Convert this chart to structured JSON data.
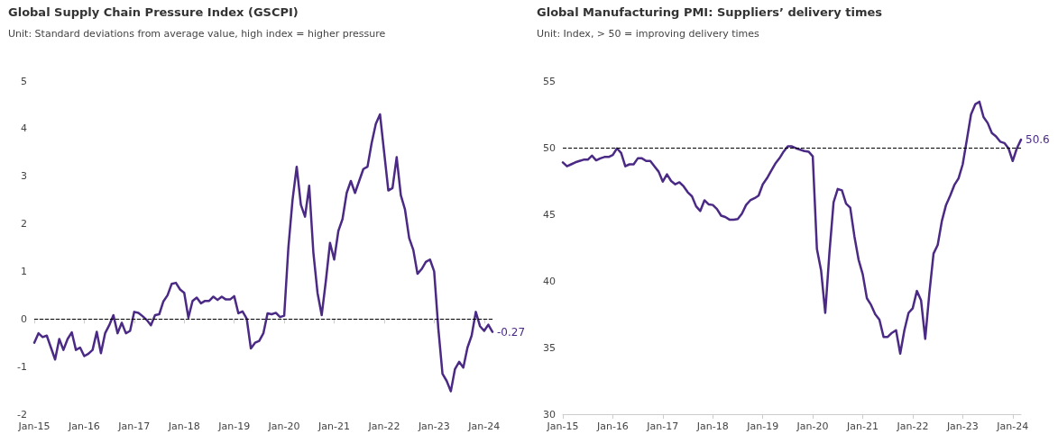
{
  "chart_data": [
    {
      "type": "line",
      "title": "Global Supply Chain Pressure Index (GSCPI)",
      "subtitle": "Unit: Standard deviations from average value, high index = higher pressure",
      "categories": [
        "Jan-15",
        null,
        null,
        null,
        null,
        null,
        null,
        null,
        null,
        null,
        null,
        null,
        "Jan-16",
        null,
        null,
        null,
        null,
        null,
        null,
        null,
        null,
        null,
        null,
        null,
        "Jan-17",
        null,
        null,
        null,
        null,
        null,
        null,
        null,
        null,
        null,
        null,
        null,
        "Jan-18",
        null,
        null,
        null,
        null,
        null,
        null,
        null,
        null,
        null,
        null,
        null,
        "Jan-19",
        null,
        null,
        null,
        null,
        null,
        null,
        null,
        null,
        null,
        null,
        null,
        "Jan-20",
        null,
        null,
        null,
        null,
        null,
        null,
        null,
        null,
        null,
        null,
        null,
        "Jan-21",
        null,
        null,
        null,
        null,
        null,
        null,
        null,
        null,
        null,
        null,
        null,
        "Jan-22",
        null,
        null,
        null,
        null,
        null,
        null,
        null,
        null,
        null,
        null,
        null,
        "Jan-23",
        null,
        null,
        null,
        null,
        null,
        null,
        null,
        null,
        null,
        null,
        null,
        "Jan-24",
        null,
        null
      ],
      "series": [
        {
          "color": "#4b2a85",
          "values": [
            -0.5,
            -0.3,
            -0.38,
            -0.35,
            -0.6,
            -0.85,
            -0.42,
            -0.65,
            -0.42,
            -0.28,
            -0.65,
            -0.6,
            -0.78,
            -0.73,
            -0.65,
            -0.27,
            -0.72,
            -0.3,
            -0.13,
            0.08,
            -0.3,
            -0.08,
            -0.3,
            -0.25,
            0.15,
            0.13,
            0.06,
            -0.02,
            -0.13,
            0.08,
            0.1,
            0.37,
            0.5,
            0.74,
            0.76,
            0.62,
            0.55,
            0.03,
            0.38,
            0.45,
            0.33,
            0.38,
            0.38,
            0.47,
            0.4,
            0.47,
            0.41,
            0.41,
            0.48,
            0.12,
            0.16,
            0.01,
            -0.62,
            -0.5,
            -0.46,
            -0.3,
            0.12,
            0.1,
            0.13,
            0.04,
            0.07,
            1.5,
            2.5,
            3.2,
            2.4,
            2.15,
            2.8,
            1.4,
            0.55,
            0.08,
            0.8,
            1.6,
            1.25,
            1.85,
            2.1,
            2.65,
            2.9,
            2.65,
            2.9,
            3.15,
            3.2,
            3.7,
            4.1,
            4.3,
            3.5,
            2.7,
            2.75,
            3.4,
            2.6,
            2.3,
            1.7,
            1.45,
            0.95,
            1.05,
            1.2,
            1.25,
            1.0,
            -0.2,
            -1.15,
            -1.3,
            -1.52,
            -1.05,
            -0.9,
            -1.02,
            -0.6,
            -0.35,
            0.15,
            -0.15,
            -0.25,
            -0.12,
            -0.27
          ],
          "value_labels": [
            null,
            null,
            null,
            null,
            null,
            null,
            null,
            null,
            null,
            null,
            null,
            null,
            null,
            null,
            null,
            null,
            null,
            null,
            null,
            null,
            null,
            null,
            null,
            null,
            null,
            null,
            null,
            null,
            null,
            null,
            null,
            null,
            null,
            null,
            null,
            null,
            null,
            null,
            null,
            null,
            null,
            null,
            null,
            null,
            null,
            null,
            null,
            null,
            null,
            null,
            null,
            null,
            null,
            null,
            null,
            null,
            null,
            null,
            null,
            null,
            null,
            null,
            null,
            null,
            null,
            null,
            null,
            null,
            null,
            null,
            null,
            null,
            null,
            null,
            null,
            null,
            null,
            null,
            null,
            null,
            null,
            null,
            null,
            null,
            null,
            null,
            null,
            null,
            null,
            null,
            null,
            null,
            null,
            null,
            null,
            null,
            null,
            null,
            null,
            null,
            null,
            null,
            null,
            null,
            null,
            null,
            null,
            null,
            null,
            null,
            "-0.27"
          ]
        }
      ],
      "ylim": [
        -2,
        5
      ],
      "yticks": [
        -2,
        -1,
        0,
        1,
        2,
        3,
        4,
        5
      ],
      "marker": "none",
      "line_style": "solid",
      "ref_lines": [
        {
          "axis": "y",
          "value": 0,
          "color": "#000000",
          "line_style": "dashed"
        }
      ]
    },
    {
      "type": "line",
      "title": "Global Manufacturing PMI: Suppliers’ delivery times",
      "subtitle": "Unit: Index, > 50 = improving delivery times",
      "categories": [
        "Jan-15",
        null,
        null,
        null,
        null,
        null,
        null,
        null,
        null,
        null,
        null,
        null,
        "Jan-16",
        null,
        null,
        null,
        null,
        null,
        null,
        null,
        null,
        null,
        null,
        null,
        "Jan-17",
        null,
        null,
        null,
        null,
        null,
        null,
        null,
        null,
        null,
        null,
        null,
        "Jan-18",
        null,
        null,
        null,
        null,
        null,
        null,
        null,
        null,
        null,
        null,
        null,
        "Jan-19",
        null,
        null,
        null,
        null,
        null,
        null,
        null,
        null,
        null,
        null,
        null,
        "Jan-20",
        null,
        null,
        null,
        null,
        null,
        null,
        null,
        null,
        null,
        null,
        null,
        "Jan-21",
        null,
        null,
        null,
        null,
        null,
        null,
        null,
        null,
        null,
        null,
        null,
        "Jan-22",
        null,
        null,
        null,
        null,
        null,
        null,
        null,
        null,
        null,
        null,
        null,
        "Jan-23",
        null,
        null,
        null,
        null,
        null,
        null,
        null,
        null,
        null,
        null,
        null,
        "Jan-24",
        null,
        null
      ],
      "series": [
        {
          "color": "#4b2a85",
          "values": [
            48.9,
            48.6,
            48.75,
            48.9,
            49.0,
            49.1,
            49.1,
            49.4,
            49.05,
            49.2,
            49.3,
            49.3,
            49.45,
            49.95,
            49.6,
            48.6,
            48.75,
            48.75,
            49.2,
            49.2,
            49.0,
            49.0,
            48.6,
            48.2,
            47.45,
            48.0,
            47.5,
            47.25,
            47.4,
            47.1,
            46.65,
            46.35,
            45.6,
            45.25,
            46.05,
            45.75,
            45.7,
            45.4,
            44.9,
            44.8,
            44.6,
            44.6,
            44.65,
            45.05,
            45.7,
            46.05,
            46.2,
            46.4,
            47.25,
            47.7,
            48.25,
            48.8,
            49.2,
            49.7,
            50.1,
            50.1,
            49.95,
            49.85,
            49.75,
            49.7,
            49.35,
            42.4,
            40.8,
            37.6,
            42.1,
            45.9,
            46.9,
            46.8,
            45.8,
            45.5,
            43.35,
            41.6,
            40.5,
            38.7,
            38.2,
            37.5,
            37.1,
            35.8,
            35.8,
            36.1,
            36.3,
            34.55,
            36.3,
            37.6,
            37.95,
            39.25,
            38.55,
            35.65,
            39.1,
            42.05,
            42.7,
            44.5,
            45.7,
            46.4,
            47.2,
            47.7,
            48.75,
            50.6,
            52.5,
            53.25,
            53.45,
            52.3,
            51.85,
            51.1,
            50.85,
            50.45,
            50.35,
            49.95,
            49.0,
            49.95,
            50.6
          ],
          "value_labels": [
            null,
            null,
            null,
            null,
            null,
            null,
            null,
            null,
            null,
            null,
            null,
            null,
            null,
            null,
            null,
            null,
            null,
            null,
            null,
            null,
            null,
            null,
            null,
            null,
            null,
            null,
            null,
            null,
            null,
            null,
            null,
            null,
            null,
            null,
            null,
            null,
            null,
            null,
            null,
            null,
            null,
            null,
            null,
            null,
            null,
            null,
            null,
            null,
            null,
            null,
            null,
            null,
            null,
            null,
            null,
            null,
            null,
            null,
            null,
            null,
            null,
            null,
            null,
            null,
            null,
            null,
            null,
            null,
            null,
            null,
            null,
            null,
            null,
            null,
            null,
            null,
            null,
            null,
            null,
            null,
            null,
            null,
            null,
            null,
            null,
            null,
            null,
            null,
            null,
            null,
            null,
            null,
            null,
            null,
            null,
            null,
            null,
            null,
            null,
            null,
            null,
            null,
            null,
            null,
            null,
            null,
            null,
            null,
            null,
            null,
            "50.6"
          ]
        }
      ],
      "ylim": [
        30,
        55
      ],
      "yticks": [
        30,
        35,
        40,
        45,
        50,
        55
      ],
      "marker": "none",
      "line_style": "solid",
      "ref_lines": [
        {
          "axis": "y",
          "value": 50,
          "color": "#000000",
          "line_style": "dashed"
        }
      ]
    }
  ]
}
